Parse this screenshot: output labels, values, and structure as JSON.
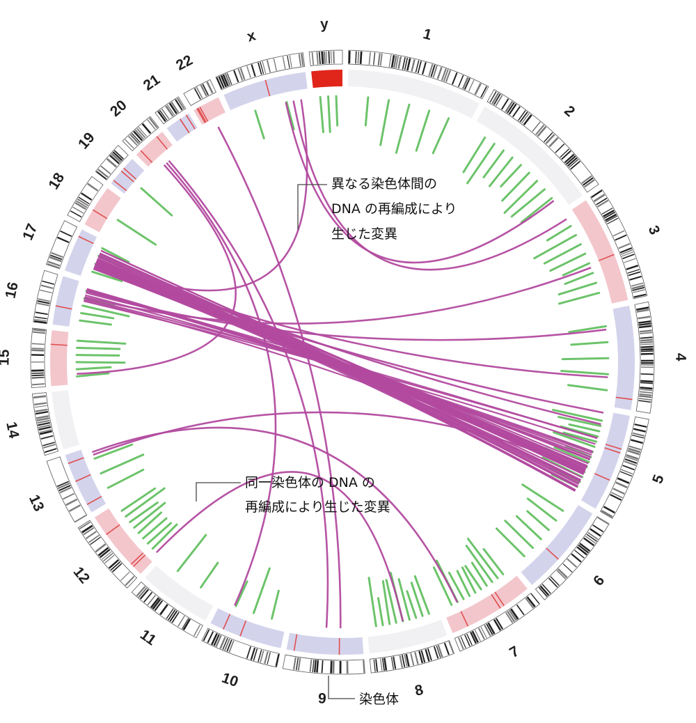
{
  "chromosomes": [
    {
      "id": "1",
      "label": "1",
      "size": 249,
      "cn": "neutral",
      "within": 5
    },
    {
      "id": "2",
      "label": "2",
      "size": 243,
      "cn": "neutral",
      "within": 9
    },
    {
      "id": "3",
      "label": "3",
      "size": 198,
      "cn": "gain",
      "within": 8
    },
    {
      "id": "4",
      "label": "4",
      "size": 191,
      "cn": "loss",
      "within": 5
    },
    {
      "id": "5",
      "label": "5",
      "size": 181,
      "cn": "loss",
      "within": 14
    },
    {
      "id": "6",
      "label": "6",
      "size": 171,
      "cn": "loss",
      "within": 6
    },
    {
      "id": "7",
      "label": "7",
      "size": 159,
      "cn": "gain",
      "within": 10
    },
    {
      "id": "8",
      "label": "8",
      "size": 146,
      "cn": "neutral",
      "within": 9
    },
    {
      "id": "9",
      "label": "9",
      "size": 141,
      "cn": "loss",
      "within": 0
    },
    {
      "id": "10",
      "label": "10",
      "size": 136,
      "cn": "loss",
      "within": 3
    },
    {
      "id": "11",
      "label": "11",
      "size": 135,
      "cn": "neutral",
      "within": 2
    },
    {
      "id": "12",
      "label": "12",
      "size": 133,
      "cn": "gain",
      "within": 8
    },
    {
      "id": "13",
      "label": "13",
      "size": 115,
      "cn": "loss",
      "within": 3
    },
    {
      "id": "14",
      "label": "14",
      "size": 107,
      "cn": "neutral",
      "within": 0
    },
    {
      "id": "15",
      "label": "15",
      "size": 102,
      "cn": "gain",
      "within": 6
    },
    {
      "id": "16",
      "label": "16",
      "size": 90,
      "cn": "loss",
      "within": 5
    },
    {
      "id": "17",
      "label": "17",
      "size": 81,
      "cn": "loss",
      "within": 4
    },
    {
      "id": "18",
      "label": "18",
      "size": 78,
      "cn": "gain",
      "within": 1
    },
    {
      "id": "19",
      "label": "19",
      "size": 59,
      "cn": "loss",
      "within": 1
    },
    {
      "id": "20",
      "label": "20",
      "size": 63,
      "cn": "gain",
      "within": 0
    },
    {
      "id": "21",
      "label": "21",
      "size": 48,
      "cn": "loss",
      "within": 0
    },
    {
      "id": "22",
      "label": "22",
      "size": 51,
      "cn": "gain",
      "within": 0
    },
    {
      "id": "x",
      "label": "x",
      "size": 155,
      "cn": "loss",
      "within": 2
    },
    {
      "id": "y",
      "label": "y",
      "size": 57,
      "cn": "high",
      "within": 3
    }
  ],
  "colors": {
    "band_dark": "#222222",
    "band_light": "#ffffff",
    "cn_gain": "#f3c6cc",
    "cn_loss": "#d3d3ec",
    "cn_neutral": "#f1f1f4",
    "cn_high": "#e0261b",
    "within_links": "#6cc36a",
    "between_links": "#b24a9f"
  },
  "annotations": {
    "between": "異なる染色体間の\nDNA の再編成により\n生じた変異",
    "within": "同一染色体の DNA の\n再編成により生じた変異",
    "chromosome": "染色体"
  }
}
